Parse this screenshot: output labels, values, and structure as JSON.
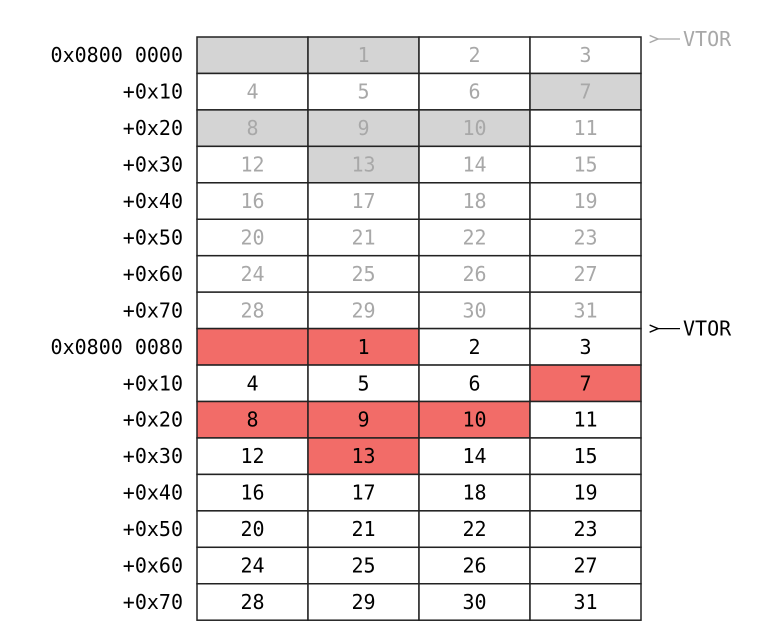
{
  "blocks": [
    {
      "vtor": "VTOR",
      "fill": "#d4d4d4",
      "text_color": "#a8a8a8",
      "highlighted": [
        0,
        1,
        7,
        8,
        9,
        10,
        13
      ],
      "rows": [
        {
          "label": "0x0800 0000",
          "cells": [
            null,
            1,
            2,
            3
          ]
        },
        {
          "label": "+0x10",
          "cells": [
            4,
            5,
            6,
            7
          ]
        },
        {
          "label": "+0x20",
          "cells": [
            8,
            9,
            10,
            11
          ]
        },
        {
          "label": "+0x30",
          "cells": [
            12,
            13,
            14,
            15
          ]
        },
        {
          "label": "+0x40",
          "cells": [
            16,
            17,
            18,
            19
          ]
        },
        {
          "label": "+0x50",
          "cells": [
            20,
            21,
            22,
            23
          ]
        },
        {
          "label": "+0x60",
          "cells": [
            24,
            25,
            26,
            27
          ]
        },
        {
          "label": "+0x70",
          "cells": [
            28,
            29,
            30,
            31
          ]
        }
      ]
    },
    {
      "vtor": "VTOR",
      "fill": "#f26c68",
      "text_color": "#000000",
      "highlighted": [
        0,
        1,
        7,
        8,
        9,
        10,
        13
      ],
      "rows": [
        {
          "label": "0x0800 0080",
          "cells": [
            null,
            1,
            2,
            3
          ]
        },
        {
          "label": "+0x10",
          "cells": [
            4,
            5,
            6,
            7
          ]
        },
        {
          "label": "+0x20",
          "cells": [
            8,
            9,
            10,
            11
          ]
        },
        {
          "label": "+0x30",
          "cells": [
            12,
            13,
            14,
            15
          ]
        },
        {
          "label": "+0x40",
          "cells": [
            16,
            17,
            18,
            19
          ]
        },
        {
          "label": "+0x50",
          "cells": [
            20,
            21,
            22,
            23
          ]
        },
        {
          "label": "+0x60",
          "cells": [
            24,
            25,
            26,
            27
          ]
        },
        {
          "label": "+0x70",
          "cells": [
            28,
            29,
            30,
            31
          ]
        }
      ]
    }
  ]
}
